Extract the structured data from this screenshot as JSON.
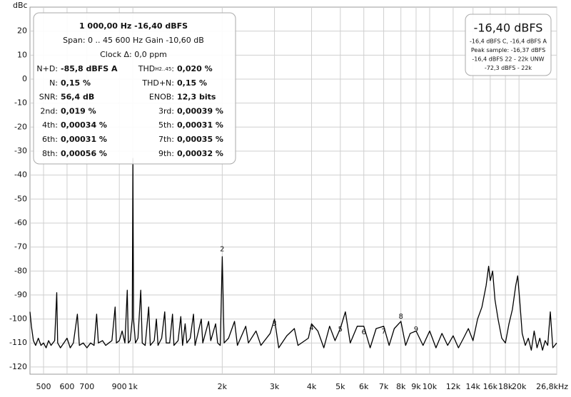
{
  "chart_data": {
    "type": "line",
    "y_label": "dBc",
    "color": "#000000",
    "grid": true,
    "xscale": "log",
    "xlim": [
      450,
      26800
    ],
    "ylim": [
      -123,
      30
    ],
    "yticks": [
      20,
      10,
      0,
      -10,
      -20,
      -30,
      -40,
      -50,
      -60,
      -70,
      -80,
      -90,
      -100,
      -110,
      -120
    ],
    "xticks": [
      500,
      600,
      700,
      900,
      {
        "value": 1000,
        "label": "1k"
      },
      {
        "value": 2000,
        "label": "2k"
      },
      {
        "value": 3000,
        "label": "3k"
      },
      {
        "value": 4000,
        "label": "4k"
      },
      {
        "value": 5000,
        "label": "5k"
      },
      {
        "value": 6000,
        "label": "6k"
      },
      {
        "value": 7000,
        "label": "7k"
      },
      {
        "value": 8000,
        "label": "8k"
      },
      {
        "value": 9000,
        "label": "9k"
      },
      {
        "value": 10000,
        "label": "10k"
      },
      {
        "value": 12000,
        "label": "12k"
      },
      {
        "value": 14000,
        "label": "14k"
      },
      {
        "value": 16000,
        "label": "16k"
      },
      {
        "value": 18000,
        "label": "18k"
      },
      {
        "value": 20000,
        "label": "20k"
      },
      {
        "value": 26800,
        "label": "26,8kHz"
      }
    ],
    "x": [
      450,
      455,
      462,
      470,
      480,
      490,
      500,
      510,
      520,
      530,
      545,
      554,
      558,
      570,
      585,
      600,
      615,
      630,
      650,
      660,
      680,
      700,
      720,
      740,
      755,
      765,
      790,
      810,
      830,
      850,
      871,
      880,
      900,
      920,
      940,
      957,
      965,
      980,
      995,
      1000,
      1005,
      1020,
      1040,
      1063,
      1075,
      1100,
      1130,
      1145,
      1180,
      1200,
      1215,
      1250,
      1280,
      1295,
      1330,
      1360,
      1375,
      1420,
      1450,
      1470,
      1500,
      1520,
      1560,
      1600,
      1620,
      1700,
      1720,
      1800,
      1830,
      1900,
      1930,
      1970,
      2000,
      2030,
      2100,
      2200,
      2250,
      2400,
      2450,
      2600,
      2700,
      2900,
      3000,
      3100,
      3300,
      3500,
      3600,
      3900,
      4000,
      4200,
      4400,
      4600,
      4800,
      5000,
      5200,
      5400,
      5700,
      6000,
      6300,
      6600,
      7000,
      7300,
      7600,
      8000,
      8300,
      8600,
      9000,
      9500,
      10000,
      10500,
      11000,
      11500,
      12000,
      12500,
      13000,
      13500,
      14000,
      14500,
      15000,
      15500,
      15800,
      16000,
      16300,
      16600,
      17000,
      17500,
      18000,
      18500,
      19000,
      19500,
      19800,
      20100,
      20500,
      21000,
      21500,
      22000,
      22500,
      23000,
      23500,
      24000,
      24500,
      25000,
      25500,
      26000,
      26800
    ],
    "values": [
      -97,
      -103,
      -109,
      -111,
      -108,
      -111,
      -110,
      -112,
      -109,
      -111,
      -109,
      -89,
      -110,
      -112,
      -110,
      -108,
      -112,
      -110,
      -98,
      -111,
      -110,
      -112,
      -110,
      -111,
      -98,
      -110,
      -109,
      -111,
      -110,
      -109,
      -95,
      -110,
      -109,
      -105,
      -110,
      -88,
      -110,
      -109,
      -100,
      -33,
      -100,
      -110,
      -108,
      -88,
      -110,
      -111,
      -95,
      -111,
      -109,
      -100,
      -111,
      -108,
      -97,
      -110,
      -110,
      -98,
      -111,
      -109,
      -99,
      -111,
      -102,
      -110,
      -108,
      -98,
      -111,
      -100,
      -110,
      -101,
      -109,
      -102,
      -110,
      -111,
      -74,
      -110,
      -108,
      -101,
      -111,
      -103,
      -110,
      -105,
      -111,
      -106,
      -100,
      -112,
      -107,
      -104,
      -111,
      -108,
      -102,
      -105,
      -112,
      -103,
      -109,
      -104,
      -97,
      -110,
      -103,
      -103,
      -112,
      -104,
      -103,
      -111,
      -104,
      -101,
      -111,
      -106,
      -105,
      -111,
      -105,
      -112,
      -106,
      -111,
      -107,
      -112,
      -108,
      -104,
      -109,
      -100,
      -95,
      -86,
      -78,
      -84,
      -80,
      -92,
      -100,
      -108,
      -110,
      -102,
      -96,
      -86,
      -82,
      -92,
      -106,
      -111,
      -108,
      -113,
      -105,
      -112,
      -108,
      -113,
      -109,
      -111,
      -97,
      -112,
      -110
    ],
    "harmonic_labels": [
      {
        "label": "2",
        "x": 2000,
        "y": -70.8
      },
      {
        "label": "3",
        "x": 3000,
        "y": -101.9
      },
      {
        "label": "4",
        "x": 4000,
        "y": -103.7
      },
      {
        "label": "5",
        "x": 5000,
        "y": -104.3
      },
      {
        "label": "6",
        "x": 6000,
        "y": -105.5
      },
      {
        "label": "7",
        "x": 7000,
        "y": -105.2
      },
      {
        "label": "8",
        "x": 8000,
        "y": -99
      },
      {
        "label": "9",
        "x": 9000,
        "y": -104.3
      }
    ],
    "info_box": {
      "line1": "1 000,00 Hz  -16,40 dBFS",
      "line2": "Span: 0 .. 45 600 Hz   Gain -10,60 dB",
      "line3": "Clock Δ: 0,0 ppm",
      "rows": [
        [
          "N+D:",
          "-85,8 dBFS A",
          [
            "THD",
            "H2..45",
            ":"
          ],
          "0,020 %"
        ],
        [
          "N:",
          "0,15 %",
          "THD+N:",
          "0,15 %"
        ],
        [
          "SNR:",
          "56,4 dB",
          "ENOB:",
          "12,3 bits"
        ],
        [
          "2nd:",
          "0,019 %",
          "3rd:",
          "0,00039 %"
        ],
        [
          "4th:",
          "0,00034 %",
          "5th:",
          "0,00031 %"
        ],
        [
          "6th:",
          "0,00031 %",
          "7th:",
          "0,00035 %"
        ],
        [
          "8th:",
          "0,00056 %",
          "9th:",
          "0,00032 %"
        ]
      ]
    },
    "level_box": {
      "main": "-16,40 dBFS",
      "lines": [
        "-16,4 dBFS C, -16,4 dBFS A",
        "Peak sample: -16,37 dBFS",
        "-16,4 dBFS 22 - 22k UNW",
        "-72,3 dBFS - 22k"
      ]
    }
  }
}
